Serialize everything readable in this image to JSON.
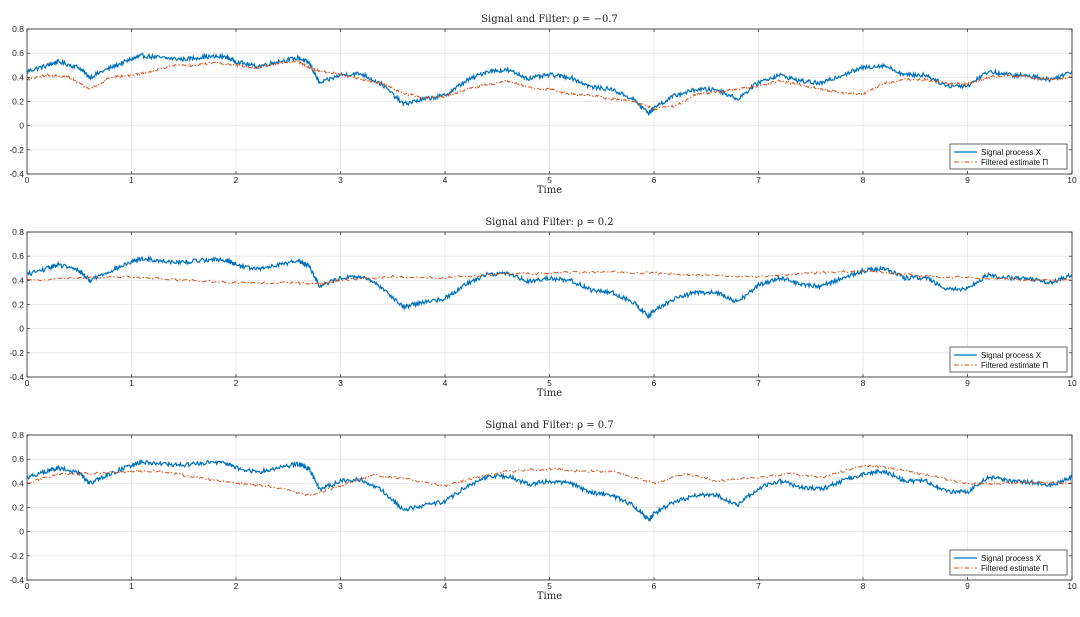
{
  "chart_data": [
    {
      "type": "line",
      "title": "Signal and Filter: ρ = −0.7",
      "xlabel": "Time",
      "ylabel": "",
      "xlim": [
        0,
        10
      ],
      "ylim": [
        -0.4,
        0.8
      ],
      "xticks": [
        "0",
        "1",
        "2",
        "3",
        "4",
        "5",
        "6",
        "7",
        "8",
        "9",
        "10"
      ],
      "yticks": [
        "0.8",
        "0.6",
        "0.4",
        "0.2",
        "0",
        "-0.2",
        "-0.4"
      ],
      "grid": true,
      "legend_position": "bottom-right",
      "series": [
        {
          "name": "Signal process X",
          "color": "#0072BD",
          "x": [
            0,
            0.2,
            0.3,
            0.5,
            0.6,
            0.8,
            1.0,
            1.1,
            1.3,
            1.5,
            1.7,
            1.9,
            2.0,
            2.2,
            2.4,
            2.6,
            2.7,
            2.8,
            3.0,
            3.2,
            3.4,
            3.6,
            3.8,
            4.0,
            4.2,
            4.4,
            4.6,
            4.8,
            5.0,
            5.2,
            5.4,
            5.6,
            5.8,
            5.95,
            6.0,
            6.2,
            6.4,
            6.6,
            6.8,
            7.0,
            7.2,
            7.4,
            7.6,
            7.8,
            8.0,
            8.2,
            8.4,
            8.6,
            8.8,
            9.0,
            9.2,
            9.4,
            9.6,
            9.8,
            10.0
          ],
          "y": [
            0.45,
            0.5,
            0.53,
            0.48,
            0.4,
            0.48,
            0.55,
            0.58,
            0.56,
            0.55,
            0.57,
            0.57,
            0.53,
            0.49,
            0.53,
            0.56,
            0.52,
            0.35,
            0.42,
            0.43,
            0.34,
            0.18,
            0.22,
            0.25,
            0.37,
            0.45,
            0.46,
            0.39,
            0.42,
            0.4,
            0.32,
            0.3,
            0.22,
            0.1,
            0.15,
            0.25,
            0.3,
            0.3,
            0.22,
            0.36,
            0.42,
            0.37,
            0.35,
            0.42,
            0.48,
            0.5,
            0.42,
            0.42,
            0.33,
            0.33,
            0.45,
            0.42,
            0.41,
            0.38,
            0.45
          ]
        },
        {
          "name": "Filtered estimate Π",
          "color": "#D95319",
          "x": [
            0,
            0.2,
            0.4,
            0.6,
            0.8,
            1.0,
            1.2,
            1.4,
            1.6,
            1.8,
            2.0,
            2.2,
            2.4,
            2.6,
            2.7,
            2.8,
            3.0,
            3.2,
            3.4,
            3.6,
            3.8,
            4.0,
            4.2,
            4.4,
            4.6,
            4.8,
            5.0,
            5.2,
            5.4,
            5.6,
            5.8,
            6.0,
            6.2,
            6.4,
            6.6,
            6.8,
            7.0,
            7.2,
            7.4,
            7.6,
            7.8,
            8.0,
            8.2,
            8.4,
            8.6,
            8.8,
            9.0,
            9.2,
            9.4,
            9.6,
            9.8,
            10.0
          ],
          "y": [
            0.38,
            0.42,
            0.4,
            0.3,
            0.4,
            0.42,
            0.45,
            0.5,
            0.5,
            0.52,
            0.5,
            0.48,
            0.52,
            0.53,
            0.48,
            0.45,
            0.43,
            0.38,
            0.35,
            0.27,
            0.23,
            0.24,
            0.3,
            0.34,
            0.37,
            0.32,
            0.3,
            0.26,
            0.25,
            0.22,
            0.2,
            0.14,
            0.16,
            0.26,
            0.28,
            0.3,
            0.33,
            0.37,
            0.34,
            0.3,
            0.27,
            0.26,
            0.35,
            0.38,
            0.38,
            0.35,
            0.35,
            0.4,
            0.42,
            0.4,
            0.38,
            0.4
          ]
        }
      ]
    },
    {
      "type": "line",
      "title": "Signal and Filter: ρ = 0.2",
      "xlabel": "Time",
      "ylabel": "",
      "xlim": [
        0,
        10
      ],
      "ylim": [
        -0.4,
        0.8
      ],
      "xticks": [
        "0",
        "1",
        "2",
        "3",
        "4",
        "5",
        "6",
        "7",
        "8",
        "9",
        "10"
      ],
      "yticks": [
        "0.8",
        "0.6",
        "0.4",
        "0.2",
        "0",
        "-0.2",
        "-0.4"
      ],
      "grid": true,
      "legend_position": "bottom-right",
      "series": [
        {
          "name": "Signal process X",
          "color": "#0072BD",
          "x": [
            0,
            0.2,
            0.3,
            0.5,
            0.6,
            0.8,
            1.0,
            1.1,
            1.3,
            1.5,
            1.7,
            1.9,
            2.0,
            2.2,
            2.4,
            2.6,
            2.7,
            2.8,
            3.0,
            3.2,
            3.4,
            3.6,
            3.8,
            4.0,
            4.2,
            4.4,
            4.6,
            4.8,
            5.0,
            5.2,
            5.4,
            5.6,
            5.8,
            5.95,
            6.0,
            6.2,
            6.4,
            6.6,
            6.8,
            7.0,
            7.2,
            7.4,
            7.6,
            7.8,
            8.0,
            8.2,
            8.4,
            8.6,
            8.8,
            9.0,
            9.2,
            9.4,
            9.6,
            9.8,
            10.0
          ],
          "y": [
            0.45,
            0.5,
            0.53,
            0.48,
            0.4,
            0.48,
            0.55,
            0.58,
            0.56,
            0.55,
            0.57,
            0.57,
            0.53,
            0.49,
            0.53,
            0.56,
            0.52,
            0.35,
            0.42,
            0.43,
            0.34,
            0.18,
            0.22,
            0.25,
            0.37,
            0.45,
            0.46,
            0.39,
            0.42,
            0.4,
            0.32,
            0.3,
            0.22,
            0.1,
            0.15,
            0.25,
            0.3,
            0.3,
            0.22,
            0.36,
            0.42,
            0.37,
            0.35,
            0.42,
            0.48,
            0.5,
            0.42,
            0.42,
            0.33,
            0.33,
            0.45,
            0.42,
            0.41,
            0.38,
            0.45
          ]
        },
        {
          "name": "Filtered estimate Π",
          "color": "#D95319",
          "x": [
            0,
            0.5,
            1.0,
            1.5,
            2.0,
            2.5,
            2.8,
            3.0,
            3.5,
            4.0,
            4.5,
            5.0,
            5.5,
            6.0,
            6.5,
            7.0,
            7.5,
            8.0,
            8.5,
            9.0,
            9.5,
            10.0
          ],
          "y": [
            0.4,
            0.42,
            0.43,
            0.4,
            0.38,
            0.38,
            0.37,
            0.4,
            0.43,
            0.42,
            0.45,
            0.46,
            0.47,
            0.46,
            0.44,
            0.43,
            0.46,
            0.48,
            0.44,
            0.42,
            0.41,
            0.4
          ]
        }
      ]
    },
    {
      "type": "line",
      "title": "Signal and Filter: ρ = 0.7",
      "xlabel": "Time",
      "ylabel": "",
      "xlim": [
        0,
        10
      ],
      "ylim": [
        -0.4,
        0.8
      ],
      "xticks": [
        "0",
        "1",
        "2",
        "3",
        "4",
        "5",
        "6",
        "7",
        "8",
        "9",
        "10"
      ],
      "yticks": [
        "0.8",
        "0.6",
        "0.4",
        "0.2",
        "0",
        "-0.2",
        "-0.4"
      ],
      "grid": true,
      "legend_position": "bottom-right",
      "series": [
        {
          "name": "Signal process X",
          "color": "#0072BD",
          "x": [
            0,
            0.2,
            0.3,
            0.5,
            0.6,
            0.8,
            1.0,
            1.1,
            1.3,
            1.5,
            1.7,
            1.9,
            2.0,
            2.2,
            2.4,
            2.6,
            2.7,
            2.8,
            3.0,
            3.2,
            3.4,
            3.6,
            3.8,
            4.0,
            4.2,
            4.4,
            4.6,
            4.8,
            5.0,
            5.2,
            5.4,
            5.6,
            5.8,
            5.95,
            6.0,
            6.2,
            6.4,
            6.6,
            6.8,
            7.0,
            7.2,
            7.4,
            7.6,
            7.8,
            8.0,
            8.2,
            8.4,
            8.6,
            8.8,
            9.0,
            9.2,
            9.4,
            9.6,
            9.8,
            10.0
          ],
          "y": [
            0.45,
            0.5,
            0.53,
            0.48,
            0.4,
            0.48,
            0.55,
            0.58,
            0.56,
            0.55,
            0.57,
            0.57,
            0.53,
            0.49,
            0.53,
            0.56,
            0.52,
            0.35,
            0.42,
            0.43,
            0.34,
            0.18,
            0.22,
            0.25,
            0.37,
            0.45,
            0.46,
            0.39,
            0.42,
            0.4,
            0.32,
            0.3,
            0.22,
            0.1,
            0.15,
            0.25,
            0.3,
            0.3,
            0.22,
            0.36,
            0.42,
            0.37,
            0.35,
            0.42,
            0.48,
            0.5,
            0.42,
            0.42,
            0.33,
            0.33,
            0.45,
            0.42,
            0.41,
            0.38,
            0.45
          ]
        },
        {
          "name": "Filtered estimate Π",
          "color": "#D95319",
          "x": [
            0,
            0.3,
            0.6,
            1.0,
            1.3,
            1.6,
            2.0,
            2.3,
            2.7,
            3.0,
            3.3,
            3.6,
            4.0,
            4.3,
            4.6,
            5.0,
            5.3,
            5.6,
            6.0,
            6.3,
            6.6,
            7.0,
            7.3,
            7.6,
            8.0,
            8.3,
            8.6,
            9.0,
            9.3,
            9.6,
            10.0
          ],
          "y": [
            0.4,
            0.48,
            0.48,
            0.5,
            0.5,
            0.45,
            0.4,
            0.38,
            0.3,
            0.38,
            0.47,
            0.44,
            0.38,
            0.45,
            0.5,
            0.52,
            0.5,
            0.5,
            0.4,
            0.48,
            0.42,
            0.45,
            0.48,
            0.45,
            0.55,
            0.52,
            0.47,
            0.4,
            0.4,
            0.41,
            0.4
          ]
        }
      ]
    }
  ]
}
